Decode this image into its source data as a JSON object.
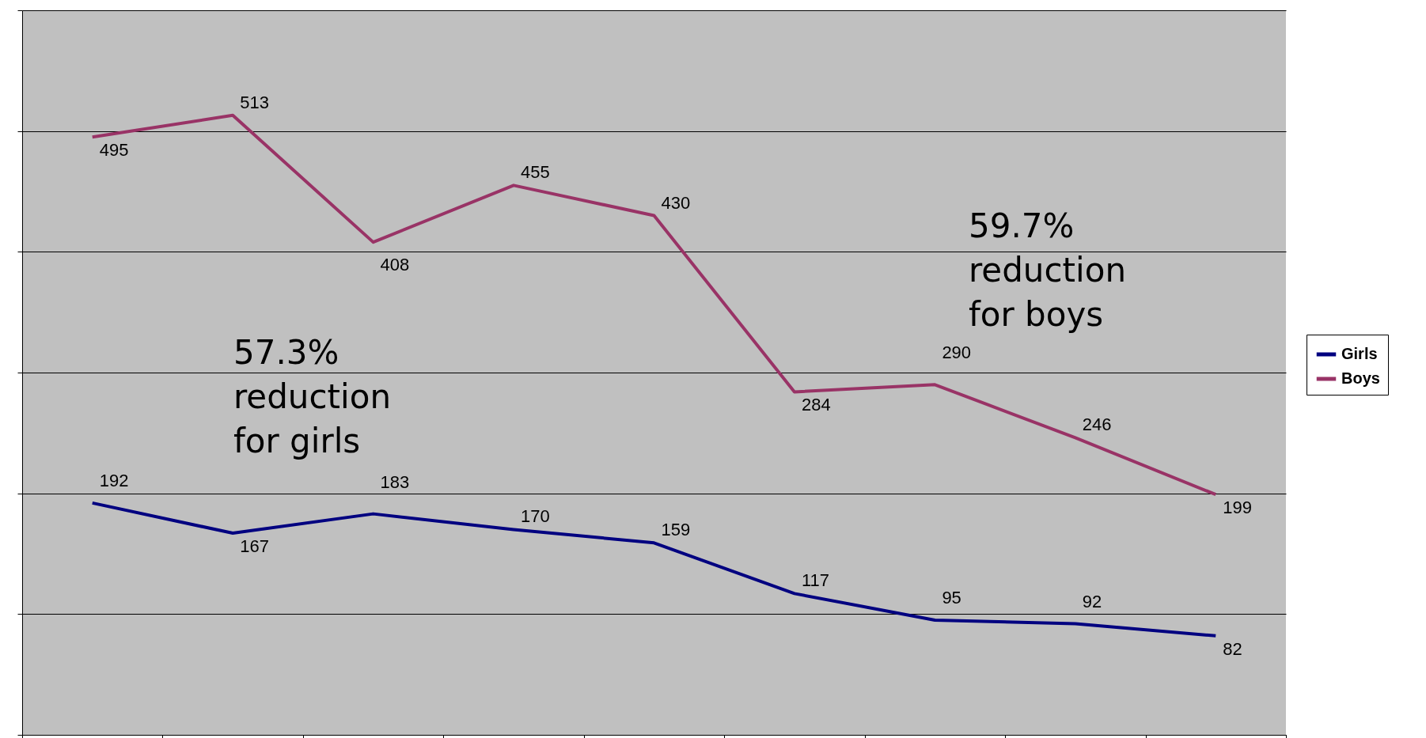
{
  "chart_data": {
    "type": "line",
    "categories": [
      null,
      null,
      null,
      null,
      null,
      null,
      null,
      null,
      null
    ],
    "series": [
      {
        "name": "Girls",
        "color": "#000080",
        "values": [
          192,
          167,
          183,
          170,
          159,
          117,
          95,
          92,
          82
        ]
      },
      {
        "name": "Boys",
        "color": "#993366",
        "values": [
          495,
          513,
          408,
          455,
          430,
          284,
          290,
          246,
          199
        ]
      }
    ],
    "ylim": [
      0,
      600
    ],
    "yticks": [
      {
        "value": 0,
        "label": null
      },
      {
        "value": 100,
        "label": null
      },
      {
        "value": 200,
        "label": null
      },
      {
        "value": 300,
        "label": null
      },
      {
        "value": 400,
        "label": null
      },
      {
        "value": 500,
        "label": null
      },
      {
        "value": 600,
        "label": null
      }
    ],
    "grid": "y",
    "legend": "right",
    "data_labels": true,
    "annotations": [
      "57.3%\nreduction\nfor girls",
      "59.7%\nreduction\nfor boys"
    ]
  }
}
